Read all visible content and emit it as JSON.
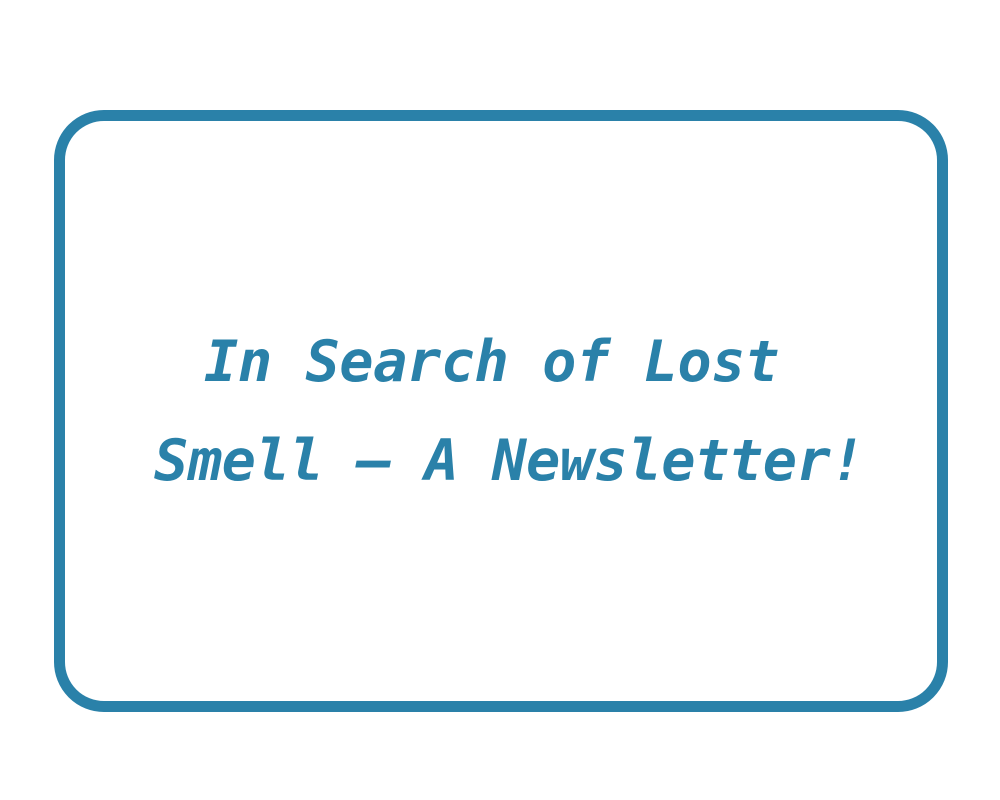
{
  "card": {
    "title_line_1": "In Search of Lost",
    "title_line_2": "Smell – A Newsletter!"
  },
  "colors": {
    "accent": "#2a81a9",
    "background": "#ffffff"
  }
}
